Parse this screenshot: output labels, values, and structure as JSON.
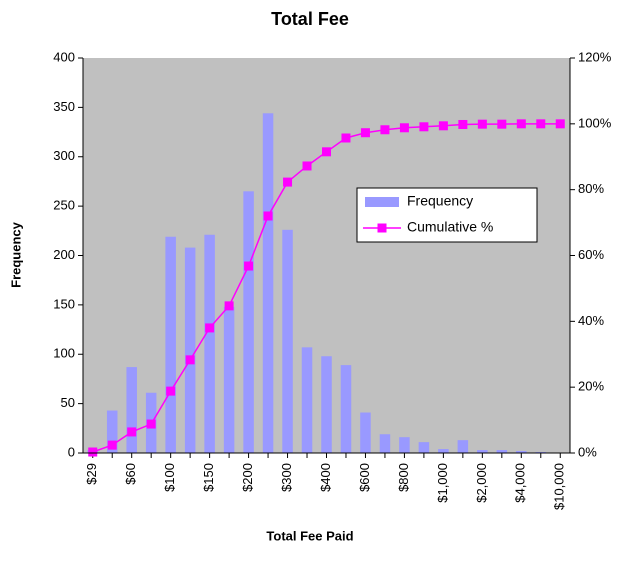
{
  "chart_data": {
    "type": "bar_line",
    "title": "Total Fee",
    "x_label": "Total Fee Paid",
    "y_label": "Frequency",
    "categories": [
      "$29",
      null,
      "$60",
      null,
      "$100",
      null,
      "$150",
      null,
      "$200",
      null,
      "$300",
      null,
      "$400",
      null,
      "$600",
      null,
      "$800",
      null,
      "$1,000",
      null,
      "$2,000",
      null,
      "$4,000",
      null,
      "$10,000"
    ],
    "series": [
      {
        "name": "Frequency",
        "type": "bar",
        "color": "#9999ff",
        "values": [
          3,
          43,
          87,
          61,
          219,
          208,
          221,
          148,
          265,
          344,
          226,
          107,
          98,
          89,
          41,
          19,
          16,
          11,
          4,
          13,
          3,
          3,
          2,
          1,
          0
        ]
      },
      {
        "name": "Cumulative %",
        "type": "line",
        "axis": "y2",
        "color": "#ff00ff",
        "values": [
          0.3,
          2.4,
          6.4,
          8.8,
          18.8,
          28.3,
          38,
          44.7,
          56.8,
          72,
          82.3,
          87.2,
          91.5,
          95.7,
          97.3,
          98.2,
          98.8,
          99.1,
          99.4,
          99.8,
          99.9,
          99.9,
          100,
          100,
          100
        ]
      }
    ],
    "ylim": [
      0,
      400
    ],
    "yticks": [
      0,
      50,
      100,
      150,
      200,
      250,
      300,
      350,
      400
    ],
    "y2lim": [
      0,
      120
    ],
    "y2ticks": [
      {
        "value": 0,
        "label": "0%"
      },
      {
        "value": 20,
        "label": "20%"
      },
      {
        "value": 40,
        "label": "40%"
      },
      {
        "value": 60,
        "label": "60%"
      },
      {
        "value": 80,
        "label": "80%"
      },
      {
        "value": 100,
        "label": "100%"
      },
      {
        "value": 120,
        "label": "120%"
      }
    ],
    "grid": false,
    "legend": "right",
    "plot_background": "#c0c0c0"
  }
}
